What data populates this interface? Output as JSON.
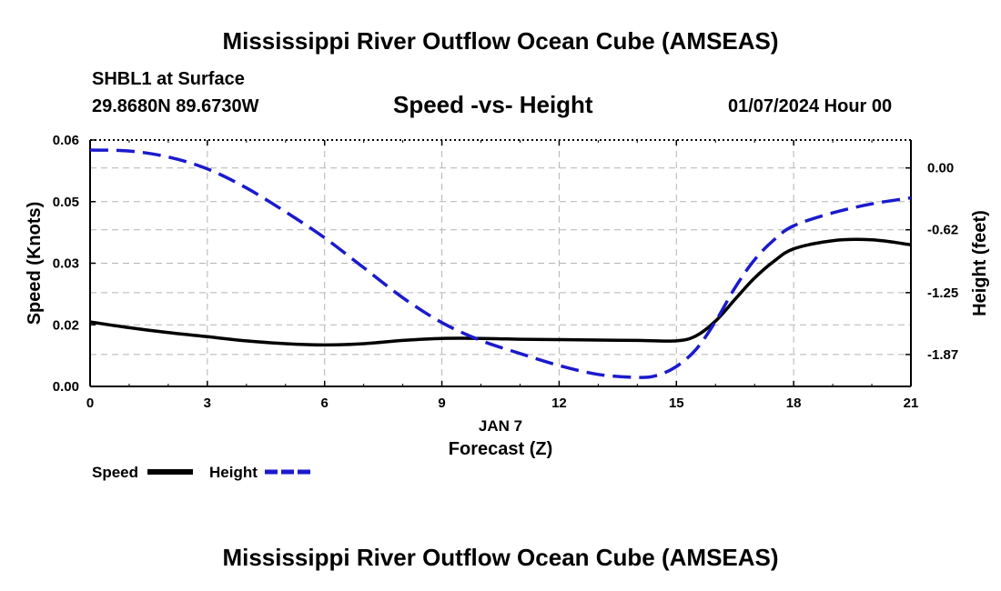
{
  "page": {
    "title": "Mississippi River Outflow Ocean Cube (AMSEAS)",
    "station": "SHBL1 at Surface",
    "coordinates": "29.8680N  89.6730W",
    "datetime": "01/07/2024 Hour 00",
    "footer_title": "Mississippi River Outflow Ocean Cube (AMSEAS)"
  },
  "colors": {
    "speed": "#000000",
    "height": "#1a1acc",
    "grid": "#b4b4b4"
  },
  "chart_data": {
    "type": "line",
    "title": "Speed -vs- Height",
    "xlabel": "Forecast (Z)",
    "xlabel_date": "JAN 7",
    "ylabel": "Speed (Knots)",
    "y2label": "Height (feet)",
    "xlim": [
      0,
      21
    ],
    "ylim": [
      0.0,
      0.06
    ],
    "y2lim": [
      -2.19,
      0.28
    ],
    "grid": true,
    "legend_position": "bottom-left",
    "x_ticks": [
      0,
      3,
      6,
      9,
      12,
      15,
      18,
      21
    ],
    "x_tick_labels": [
      "0",
      "3",
      "6",
      "9",
      "12",
      "15",
      "18",
      "21"
    ],
    "y_ticks": [
      0.0,
      0.015,
      0.03,
      0.045,
      0.06
    ],
    "y_tick_labels": [
      "0.00",
      "0.02",
      "0.03",
      "0.05",
      "0.06"
    ],
    "y2_ticks": [
      0.0,
      -0.62,
      -1.25,
      -1.87
    ],
    "y2_tick_labels": [
      "0.00",
      "-0.62",
      "-1.25",
      "-1.87"
    ],
    "series": [
      {
        "name": "Speed",
        "axis": "left",
        "style": "solid",
        "x": [
          0,
          1,
          2,
          3,
          4,
          5,
          6,
          7,
          8,
          9,
          10,
          11,
          12,
          13,
          14,
          15,
          15.5,
          16,
          16.5,
          17,
          17.5,
          18,
          19,
          20,
          21
        ],
        "y": [
          0.0157,
          0.0143,
          0.0131,
          0.0121,
          0.0111,
          0.0104,
          0.0101,
          0.0104,
          0.0112,
          0.0117,
          0.0117,
          0.0115,
          0.0114,
          0.0113,
          0.0112,
          0.0111,
          0.0123,
          0.0159,
          0.0212,
          0.0264,
          0.0305,
          0.0335,
          0.0355,
          0.0357,
          0.0345
        ]
      },
      {
        "name": "Height",
        "axis": "right",
        "style": "dashed",
        "x": [
          0,
          1,
          2,
          3,
          4,
          5,
          6,
          7,
          8,
          9,
          10,
          11,
          12,
          13,
          14,
          14.5,
          15,
          15.5,
          16,
          16.5,
          17,
          17.5,
          18,
          19,
          20,
          21
        ],
        "y": [
          0.18,
          0.17,
          0.11,
          -0.01,
          -0.2,
          -0.44,
          -0.7,
          -1.0,
          -1.3,
          -1.55,
          -1.73,
          -1.86,
          -1.98,
          -2.07,
          -2.1,
          -2.08,
          -1.99,
          -1.82,
          -1.54,
          -1.2,
          -0.92,
          -0.72,
          -0.58,
          -0.45,
          -0.36,
          -0.3
        ]
      }
    ]
  }
}
